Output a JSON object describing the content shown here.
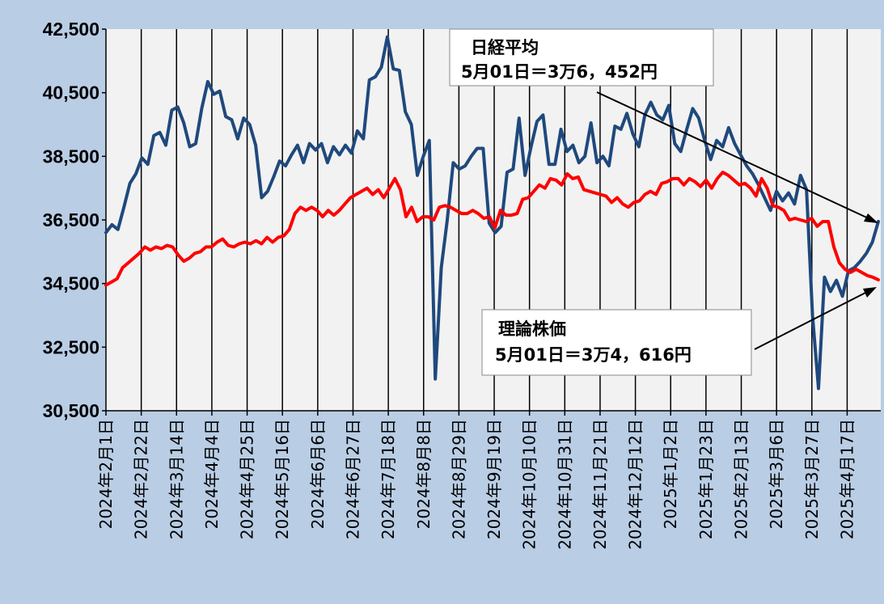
{
  "chart_data": {
    "type": "line",
    "title": "",
    "xlabel": "",
    "ylabel": "",
    "ylim": [
      30500,
      42500
    ],
    "y_ticks": [
      30500,
      32500,
      34500,
      36500,
      38500,
      40500,
      42500
    ],
    "y_tick_labels": [
      "30,500",
      "32,500",
      "34,500",
      "36,500",
      "38,500",
      "40,500",
      "42,500"
    ],
    "x_tick_labels": [
      "2024年2月1日",
      "2024年2月22日",
      "2024年3月14日",
      "2024年4月4日",
      "2024年4月25日",
      "2024年5月16日",
      "2024年6月6日",
      "2024年6月27日",
      "2024年7月18日",
      "2024年8月8日",
      "2024年8月29日",
      "2024年9月19日",
      "2024年10月10日",
      "2024年10月31日",
      "2024年11月21日",
      "2024年12月12日",
      "2025年1月2日",
      "2025年1月23日",
      "2025年2月13日",
      "2025年3月6日",
      "2025年3月27日",
      "2025年4月17日"
    ],
    "x_end": "2025年5月1日",
    "grid": "vertical",
    "series": [
      {
        "key": "nikkei",
        "color": "#1f497d",
        "values": [
          36100,
          36350,
          36200,
          36900,
          37650,
          37950,
          38450,
          38250,
          39150,
          39250,
          38850,
          39950,
          40050,
          39550,
          38800,
          38900,
          40000,
          40850,
          40450,
          40550,
          39750,
          39650,
          39050,
          39700,
          39500,
          38850,
          37200,
          37400,
          37850,
          38350,
          38200,
          38550,
          38850,
          38300,
          38900,
          38700,
          38900,
          38300,
          38800,
          38550,
          38850,
          38600,
          39300,
          39050,
          40900,
          41000,
          41300,
          42250,
          41250,
          41200,
          39900,
          39500,
          37900,
          38500,
          39000,
          31500,
          35000,
          36500,
          38300,
          38100,
          38200,
          38500,
          38750,
          38750,
          36400,
          36100,
          36300,
          38000,
          38100,
          39700,
          37900,
          38800,
          39600,
          39800,
          38250,
          38250,
          39350,
          38650,
          38850,
          38300,
          38500,
          39550,
          38300,
          38500,
          38200,
          39450,
          39350,
          39850,
          39200,
          38800,
          39800,
          40200,
          39800,
          39650,
          40100,
          38900,
          38650,
          39350,
          40000,
          39700,
          39000,
          38400,
          39000,
          38800,
          39400,
          38900,
          38550,
          38200,
          37950,
          37600,
          37200,
          36800,
          37400,
          37100,
          37350,
          37000,
          37900,
          37450,
          33500,
          31200,
          34700,
          34250,
          34600,
          34100,
          34900,
          35000,
          35200,
          35450,
          35800,
          36452
        ],
        "points_per_tick": 6.2,
        "end_value": 36452
      },
      {
        "key": "theory",
        "color": "#ff0000",
        "values": [
          34450,
          34550,
          34650,
          35000,
          35150,
          35300,
          35450,
          35650,
          35550,
          35650,
          35600,
          35700,
          35650,
          35400,
          35200,
          35300,
          35450,
          35500,
          35650,
          35650,
          35800,
          35900,
          35700,
          35650,
          35750,
          35800,
          35750,
          35850,
          35750,
          35950,
          35800,
          35950,
          36000,
          36200,
          36700,
          36900,
          36800,
          36900,
          36800,
          36600,
          36800,
          36650,
          36800,
          37000,
          37200,
          37300,
          37400,
          37500,
          37300,
          37450,
          37200,
          37500,
          37800,
          37450,
          36600,
          36900,
          36450,
          36600,
          36600,
          36500,
          36900,
          36950,
          36900,
          36800,
          36700,
          36700,
          36800,
          36700,
          36550,
          36600,
          36250,
          36800,
          36650,
          36650,
          36700,
          37150,
          37200,
          37400,
          37600,
          37500,
          37800,
          37750,
          37600,
          37950,
          37800,
          37850,
          37450,
          37400,
          37350,
          37300,
          37250,
          37050,
          37200,
          37000,
          36900,
          37050,
          37100,
          37300,
          37400,
          37300,
          37650,
          37700,
          37800,
          37800,
          37600,
          37800,
          37700,
          37550,
          37750,
          37500,
          37800,
          38000,
          37900,
          37750,
          37600,
          37650,
          37500,
          37250,
          37800,
          37500,
          36950,
          36900,
          36800,
          36500,
          36550,
          36500,
          36450,
          36550,
          36300,
          36450,
          36450,
          35650,
          35150,
          34950,
          34850,
          34950,
          34850,
          34750,
          34700,
          34616
        ],
        "points_per_tick": 6.2,
        "end_value": 34616
      }
    ]
  },
  "annotations": {
    "nikkei": {
      "line1": "日経平均",
      "line2": "5月01日＝3万6，452円"
    },
    "theory": {
      "line1": "理論株価",
      "line2": "5月01日＝3万4，616円"
    }
  }
}
